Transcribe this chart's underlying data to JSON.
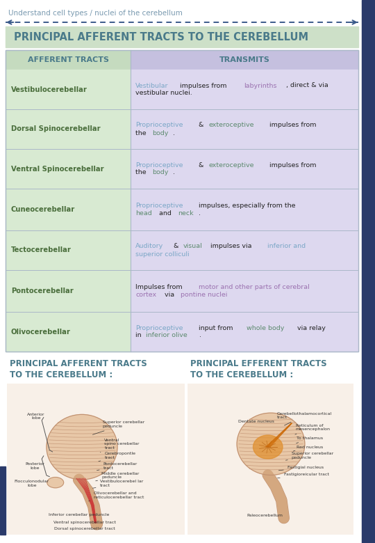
{
  "title_small": "Understand cell types / nuclei of the cerebellum",
  "title_main": "PRINCIPAL AFFERENT TRACTS TO THE CEREBELLUM",
  "col1_header": "AFFERENT TRACTS",
  "col2_header": "TRANSMITS",
  "rows": [
    {
      "tract": "Vestibulocerebellar",
      "transmits_parts": [
        {
          "text": "Vestibular",
          "color": "#7ba7c7"
        },
        {
          "text": " impulses from ",
          "color": "#222222"
        },
        {
          "text": "labyrinths",
          "color": "#9b72b0"
        },
        {
          "text": ", direct & via\nvestibular nuclei.",
          "color": "#222222"
        }
      ]
    },
    {
      "tract": "Dorsal Spinocerebellar",
      "transmits_parts": [
        {
          "text": "Proprioceptive",
          "color": "#7ba7c7"
        },
        {
          "text": " & ",
          "color": "#222222"
        },
        {
          "text": "exteroceptive",
          "color": "#5c8a6e"
        },
        {
          "text": " impulses from\nthe ",
          "color": "#222222"
        },
        {
          "text": "body",
          "color": "#5c8a6e"
        },
        {
          "text": ".",
          "color": "#222222"
        }
      ]
    },
    {
      "tract": "Ventral Spinocerebellar",
      "transmits_parts": [
        {
          "text": "Proprioceptive",
          "color": "#7ba7c7"
        },
        {
          "text": " & ",
          "color": "#222222"
        },
        {
          "text": "exteroceptive",
          "color": "#5c8a6e"
        },
        {
          "text": " impulses from\nthe ",
          "color": "#222222"
        },
        {
          "text": "body",
          "color": "#5c8a6e"
        },
        {
          "text": ".",
          "color": "#222222"
        }
      ]
    },
    {
      "tract": "Cuneocerebellar",
      "transmits_parts": [
        {
          "text": "Proprioceptive",
          "color": "#7ba7c7"
        },
        {
          "text": " impulses, especially from the\n",
          "color": "#222222"
        },
        {
          "text": "head",
          "color": "#5c8a6e"
        },
        {
          "text": " and ",
          "color": "#222222"
        },
        {
          "text": "neck",
          "color": "#5c8a6e"
        },
        {
          "text": ".",
          "color": "#222222"
        }
      ]
    },
    {
      "tract": "Tectocerebellar",
      "transmits_parts": [
        {
          "text": "Auditory",
          "color": "#7ba7c7"
        },
        {
          "text": " & ",
          "color": "#222222"
        },
        {
          "text": "visual",
          "color": "#5c8a6e"
        },
        {
          "text": " impulses via ",
          "color": "#222222"
        },
        {
          "text": "inferior and\nsuperior colliculi",
          "color": "#7ba7c7"
        }
      ]
    },
    {
      "tract": "Pontocerebellar",
      "transmits_parts": [
        {
          "text": "Impulses from ",
          "color": "#222222"
        },
        {
          "text": "motor and other parts of cerebral\ncortex",
          "color": "#9b72b0"
        },
        {
          "text": " via ",
          "color": "#222222"
        },
        {
          "text": "pontine nuclei",
          "color": "#9b72b0"
        }
      ]
    },
    {
      "tract": "Olivocerebellar",
      "transmits_parts": [
        {
          "text": "Proprioceptive",
          "color": "#7ba7c7"
        },
        {
          "text": " input from ",
          "color": "#222222"
        },
        {
          "text": "whole body",
          "color": "#5c8a6e"
        },
        {
          "text": " via relay\nin ",
          "color": "#222222"
        },
        {
          "text": "inferior olive",
          "color": "#5c8a6e"
        },
        {
          "text": ".",
          "color": "#222222"
        }
      ]
    }
  ],
  "col1_bg": "#d8ead2",
  "col2_bg": "#ddd8ef",
  "header_bg1": "#c5dbbf",
  "header_bg2": "#c5c0df",
  "title_main_bg": "#cde0c8",
  "title_main_color": "#4a7a8a",
  "title_small_color": "#7a9ab0",
  "tract_color": "#4a6e3c",
  "border_color": "#aab8c8",
  "arrow_color": "#3a5a8a",
  "sidebar_color": "#2a3a6a",
  "bottom_title_color": "#4a7a8a",
  "bottom_title1": "PRINCIPAL AFFERENT TRACTS\nTO THE CEREBELLUM :",
  "bottom_title2": "PRINCIPAL EFFERENT TRACTS\nTO THE CEREBELLUM :"
}
